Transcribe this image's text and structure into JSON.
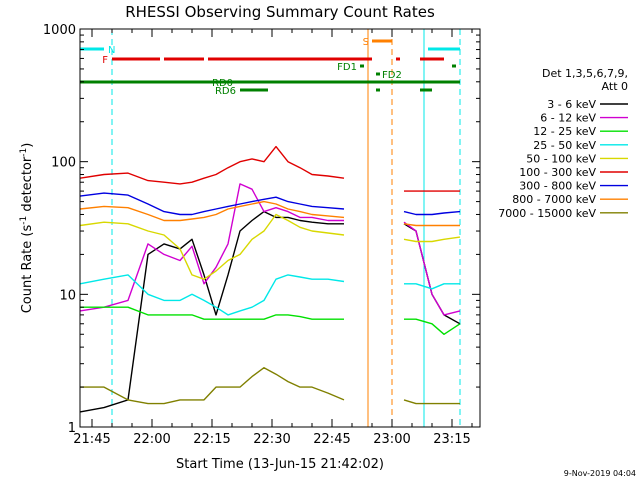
{
  "chart_data": {
    "type": "line",
    "title": "RHESSI Observing Summary Count Rates",
    "xlabel": "Start Time (13-Jun-15 21:42:02)",
    "ylabel": "Count Rate (s⁻¹ detector⁻¹)",
    "ylabel_main": "Count Rate (s",
    "ylabel_sup1": "-1",
    "ylabel_mid": " detector",
    "ylabel_sup2": "-1",
    "ylabel_end": ")",
    "y_scale": "log",
    "ylim": [
      1,
      1000
    ],
    "xlim": [
      "21:42",
      "23:22"
    ],
    "x_ticks": [
      "21:45",
      "22:00",
      "22:15",
      "22:30",
      "22:45",
      "23:00",
      "23:15"
    ],
    "y_ticks": [
      "1",
      "10",
      "100",
      "1000"
    ],
    "legend_header": [
      "Det 1,3,5,6,7,9,",
      "Att 0"
    ],
    "legend_placement": "right",
    "series": [
      {
        "name": "3 - 6 keV",
        "color": "#000000",
        "points": [
          [
            "21:42",
            1.3
          ],
          [
            "21:48",
            1.4
          ],
          [
            "21:54",
            1.6
          ],
          [
            "21:59",
            20
          ],
          [
            "22:03",
            24
          ],
          [
            "22:07",
            22
          ],
          [
            "22:10",
            26
          ],
          [
            "22:13",
            14
          ],
          [
            "22:16",
            7
          ],
          [
            "22:19",
            14
          ],
          [
            "22:22",
            30
          ],
          [
            "22:25",
            36
          ],
          [
            "22:28",
            42
          ],
          [
            "22:31",
            38
          ],
          [
            "22:34",
            38
          ],
          [
            "22:37",
            36
          ],
          [
            "22:40",
            35
          ],
          [
            "22:44",
            34
          ],
          [
            "22:48",
            34
          ],
          [
            "23:03",
            34
          ],
          [
            "23:06",
            30
          ],
          [
            "23:10",
            10
          ],
          [
            "23:13",
            7
          ],
          [
            "23:17",
            6
          ]
        ]
      },
      {
        "name": "6 - 12 keV",
        "color": "#d000d0",
        "points": [
          [
            "21:42",
            7.5
          ],
          [
            "21:48",
            8
          ],
          [
            "21:54",
            9
          ],
          [
            "21:59",
            24
          ],
          [
            "22:03",
            20
          ],
          [
            "22:07",
            18
          ],
          [
            "22:10",
            23
          ],
          [
            "22:13",
            12
          ],
          [
            "22:16",
            16
          ],
          [
            "22:19",
            24
          ],
          [
            "22:22",
            68
          ],
          [
            "22:25",
            62
          ],
          [
            "22:28",
            42
          ],
          [
            "22:31",
            45
          ],
          [
            "22:34",
            42
          ],
          [
            "22:37",
            38
          ],
          [
            "22:40",
            38
          ],
          [
            "22:44",
            36
          ],
          [
            "22:48",
            36
          ],
          [
            "23:03",
            35
          ],
          [
            "23:06",
            30
          ],
          [
            "23:10",
            10
          ],
          [
            "23:13",
            7
          ],
          [
            "23:17",
            7.5
          ]
        ]
      },
      {
        "name": "12 - 25 keV",
        "color": "#00e000",
        "points": [
          [
            "21:42",
            8
          ],
          [
            "21:48",
            8
          ],
          [
            "21:54",
            8
          ],
          [
            "21:59",
            7
          ],
          [
            "22:03",
            7
          ],
          [
            "22:07",
            7
          ],
          [
            "22:10",
            7
          ],
          [
            "22:13",
            6.5
          ],
          [
            "22:16",
            6.5
          ],
          [
            "22:19",
            6.5
          ],
          [
            "22:22",
            6.5
          ],
          [
            "22:25",
            6.5
          ],
          [
            "22:28",
            6.5
          ],
          [
            "22:31",
            7
          ],
          [
            "22:34",
            7
          ],
          [
            "22:37",
            6.8
          ],
          [
            "22:40",
            6.5
          ],
          [
            "22:44",
            6.5
          ],
          [
            "22:48",
            6.5
          ],
          [
            "23:03",
            6.5
          ],
          [
            "23:06",
            6.5
          ],
          [
            "23:10",
            6
          ],
          [
            "23:13",
            5
          ],
          [
            "23:17",
            6
          ]
        ]
      },
      {
        "name": "25 - 50 keV",
        "color": "#00e8e8",
        "points": [
          [
            "21:42",
            12
          ],
          [
            "21:48",
            13
          ],
          [
            "21:54",
            14
          ],
          [
            "21:59",
            10
          ],
          [
            "22:03",
            9
          ],
          [
            "22:07",
            9
          ],
          [
            "22:10",
            10
          ],
          [
            "22:13",
            9
          ],
          [
            "22:16",
            8
          ],
          [
            "22:19",
            7
          ],
          [
            "22:22",
            7.5
          ],
          [
            "22:25",
            8
          ],
          [
            "22:28",
            9
          ],
          [
            "22:31",
            13
          ],
          [
            "22:34",
            14
          ],
          [
            "22:37",
            13.5
          ],
          [
            "22:40",
            13
          ],
          [
            "22:44",
            13
          ],
          [
            "22:48",
            12.5
          ],
          [
            "23:03",
            12
          ],
          [
            "23:06",
            12
          ],
          [
            "23:10",
            11
          ],
          [
            "23:13",
            12
          ],
          [
            "23:17",
            12
          ]
        ]
      },
      {
        "name": "50 - 100 keV",
        "color": "#d8d800",
        "points": [
          [
            "21:42",
            33
          ],
          [
            "21:48",
            35
          ],
          [
            "21:54",
            34
          ],
          [
            "21:59",
            30
          ],
          [
            "22:03",
            28
          ],
          [
            "22:07",
            22
          ],
          [
            "22:10",
            14
          ],
          [
            "22:13",
            13
          ],
          [
            "22:16",
            15
          ],
          [
            "22:19",
            18
          ],
          [
            "22:22",
            20
          ],
          [
            "22:25",
            26
          ],
          [
            "22:28",
            30
          ],
          [
            "22:31",
            40
          ],
          [
            "22:34",
            36
          ],
          [
            "22:37",
            32
          ],
          [
            "22:40",
            30
          ],
          [
            "22:44",
            29
          ],
          [
            "22:48",
            28
          ],
          [
            "23:03",
            26
          ],
          [
            "23:06",
            25
          ],
          [
            "23:10",
            25
          ],
          [
            "23:13",
            26
          ],
          [
            "23:17",
            27
          ]
        ]
      },
      {
        "name": "100 - 300 keV",
        "color": "#e00000",
        "points": [
          [
            "21:42",
            75
          ],
          [
            "21:48",
            80
          ],
          [
            "21:54",
            82
          ],
          [
            "21:59",
            72
          ],
          [
            "22:03",
            70
          ],
          [
            "22:07",
            68
          ],
          [
            "22:10",
            70
          ],
          [
            "22:13",
            75
          ],
          [
            "22:16",
            80
          ],
          [
            "22:19",
            90
          ],
          [
            "22:22",
            100
          ],
          [
            "22:25",
            105
          ],
          [
            "22:28",
            100
          ],
          [
            "22:31",
            130
          ],
          [
            "22:34",
            100
          ],
          [
            "22:37",
            90
          ],
          [
            "22:40",
            80
          ],
          [
            "22:44",
            78
          ],
          [
            "22:48",
            75
          ],
          [
            "23:03",
            60
          ],
          [
            "23:06",
            60
          ],
          [
            "23:10",
            60
          ],
          [
            "23:13",
            60
          ],
          [
            "23:17",
            60
          ]
        ]
      },
      {
        "name": "300 - 800 keV",
        "color": "#0000e0",
        "points": [
          [
            "21:42",
            55
          ],
          [
            "21:48",
            58
          ],
          [
            "21:54",
            56
          ],
          [
            "21:59",
            48
          ],
          [
            "22:03",
            42
          ],
          [
            "22:07",
            40
          ],
          [
            "22:10",
            40
          ],
          [
            "22:13",
            42
          ],
          [
            "22:16",
            44
          ],
          [
            "22:19",
            46
          ],
          [
            "22:22",
            48
          ],
          [
            "22:25",
            50
          ],
          [
            "22:28",
            52
          ],
          [
            "22:31",
            54
          ],
          [
            "22:34",
            50
          ],
          [
            "22:37",
            48
          ],
          [
            "22:40",
            46
          ],
          [
            "22:44",
            45
          ],
          [
            "22:48",
            44
          ],
          [
            "23:03",
            42
          ],
          [
            "23:06",
            40
          ],
          [
            "23:10",
            40
          ],
          [
            "23:13",
            41
          ],
          [
            "23:17",
            42
          ]
        ]
      },
      {
        "name": "800 - 7000 keV",
        "color": "#ff8000",
        "points": [
          [
            "21:42",
            44
          ],
          [
            "21:48",
            46
          ],
          [
            "21:54",
            45
          ],
          [
            "21:59",
            40
          ],
          [
            "22:03",
            36
          ],
          [
            "22:07",
            36
          ],
          [
            "22:10",
            37
          ],
          [
            "22:13",
            38
          ],
          [
            "22:16",
            40
          ],
          [
            "22:19",
            44
          ],
          [
            "22:22",
            46
          ],
          [
            "22:25",
            48
          ],
          [
            "22:28",
            50
          ],
          [
            "22:31",
            48
          ],
          [
            "22:34",
            44
          ],
          [
            "22:37",
            42
          ],
          [
            "22:40",
            40
          ],
          [
            "22:44",
            39
          ],
          [
            "22:48",
            38
          ],
          [
            "23:03",
            34
          ],
          [
            "23:06",
            33
          ],
          [
            "23:10",
            33
          ],
          [
            "23:13",
            33
          ],
          [
            "23:17",
            33
          ]
        ]
      },
      {
        "name": "7000 - 15000 keV",
        "color": "#808000",
        "points": [
          [
            "21:42",
            2
          ],
          [
            "21:48",
            2
          ],
          [
            "21:54",
            1.6
          ],
          [
            "21:59",
            1.5
          ],
          [
            "22:03",
            1.5
          ],
          [
            "22:07",
            1.6
          ],
          [
            "22:10",
            1.6
          ],
          [
            "22:13",
            1.6
          ],
          [
            "22:16",
            2
          ],
          [
            "22:19",
            2
          ],
          [
            "22:22",
            2
          ],
          [
            "22:25",
            2.4
          ],
          [
            "22:28",
            2.8
          ],
          [
            "22:31",
            2.5
          ],
          [
            "22:34",
            2.2
          ],
          [
            "22:37",
            2
          ],
          [
            "22:40",
            2
          ],
          [
            "22:44",
            1.8
          ],
          [
            "22:48",
            1.6
          ],
          [
            "23:03",
            1.6
          ],
          [
            "23:06",
            1.5
          ],
          [
            "23:10",
            1.5
          ],
          [
            "23:13",
            1.5
          ],
          [
            "23:17",
            1.5
          ]
        ]
      }
    ],
    "flag_bars": [
      {
        "label": "N",
        "color": "#00e8e8",
        "intervals": [
          [
            "21:42",
            "21:48"
          ],
          [
            "23:09",
            "23:17"
          ]
        ]
      },
      {
        "label": "S",
        "color": "#ff8000",
        "intervals": [
          [
            "22:55",
            "23:00"
          ]
        ]
      },
      {
        "label": "F",
        "color": "#e00000",
        "intervals": [
          [
            "21:50",
            "22:02"
          ],
          [
            "22:03",
            "22:13"
          ],
          [
            "22:14",
            "22:55"
          ],
          [
            "23:01",
            "23:02"
          ],
          [
            "23:07",
            "23:13"
          ]
        ]
      },
      {
        "label": "FD1",
        "color": "#008000",
        "intervals": [
          [
            "22:52",
            "22:53"
          ],
          [
            "23:15",
            "23:16"
          ]
        ]
      },
      {
        "label": "FD2",
        "color": "#008000",
        "intervals": [
          [
            "22:56",
            "22:57"
          ]
        ]
      },
      {
        "label": "RD0",
        "color": "#008000",
        "intervals": [
          [
            "21:42",
            "23:17"
          ]
        ]
      },
      {
        "label": "RD6",
        "color": "#008000",
        "intervals": [
          [
            "22:22",
            "22:29"
          ],
          [
            "22:56",
            "22:57"
          ],
          [
            "23:07",
            "23:10"
          ]
        ]
      }
    ],
    "vertical_markers": [
      {
        "time": "21:42",
        "color": "#00e8e8",
        "style": "solid"
      },
      {
        "time": "21:50",
        "color": "#00e8e8",
        "style": "dashed"
      },
      {
        "time": "22:54",
        "color": "#ff8000",
        "style": "solid"
      },
      {
        "time": "23:00",
        "color": "#ff8000",
        "style": "dashed"
      },
      {
        "time": "23:08",
        "color": "#00e8e8",
        "style": "solid"
      },
      {
        "time": "23:17",
        "color": "#00e8e8",
        "style": "dashed"
      }
    ],
    "data_gap": [
      "22:48",
      "23:02"
    ],
    "footer_date": "9-Nov-2019 04:04"
  }
}
